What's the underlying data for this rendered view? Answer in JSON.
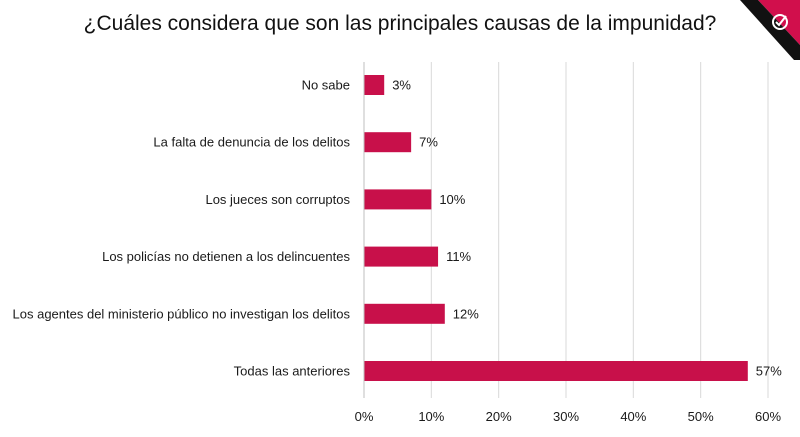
{
  "chart_data": {
    "type": "bar",
    "orientation": "horizontal",
    "title": "¿Cuáles considera que son las principales causas de la impunidad?",
    "categories": [
      "No sabe",
      "La falta de denuncia de los delitos",
      "Los jueces son corruptos",
      "Los policías no detienen a los delincuentes",
      "Los agentes del ministerio público no investigan los delitos",
      "Todas las anteriores"
    ],
    "values": [
      3,
      7,
      10,
      11,
      12,
      57
    ],
    "value_labels": [
      "3%",
      "7%",
      "10%",
      "11%",
      "12%",
      "57%"
    ],
    "xlim": [
      0,
      60
    ],
    "xticks": [
      0,
      10,
      20,
      30,
      40,
      50,
      60
    ],
    "xtick_labels": [
      "0%",
      "10%",
      "20%",
      "30%",
      "40%",
      "50%",
      "60%"
    ],
    "bar_color": "#c8104a",
    "grid": true,
    "legend": "none"
  },
  "logo": {
    "name": "checkmark-logo",
    "color": "#d10f4c"
  }
}
